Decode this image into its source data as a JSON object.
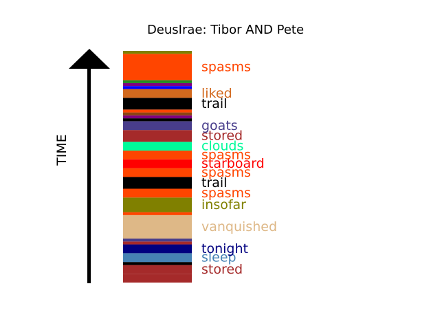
{
  "chart_data": {
    "type": "bar",
    "title": "DeusIrae: Tibor AND Pete",
    "ylabel": "TIME",
    "y_axis": "arrow pointing up, no ticks",
    "segments": [
      {
        "label": "",
        "color": "#a52a2a",
        "start": 0,
        "end": 1.5
      },
      {
        "label": "stored",
        "color": "#a52a2a",
        "start": 1.5,
        "end": 3.0
      },
      {
        "label": "",
        "color": "#000000",
        "start": 3.0,
        "end": 3.5
      },
      {
        "label": "sleep",
        "color": "#4682b4",
        "start": 3.5,
        "end": 5.0
      },
      {
        "label": "tonight",
        "color": "#000080",
        "start": 5.0,
        "end": 6.5
      },
      {
        "label": "",
        "color": "#a52a2a",
        "start": 6.5,
        "end": 7.0
      },
      {
        "label": "",
        "color": "#483d8b",
        "start": 7.0,
        "end": 7.5
      },
      {
        "label": "vanquished",
        "color": "#deb887",
        "start": 7.5,
        "end": 11.5
      },
      {
        "label": "",
        "color": "#ff4500",
        "start": 11.5,
        "end": 12.0
      },
      {
        "label": "insofar",
        "color": "#808000",
        "start": 12.0,
        "end": 14.5
      },
      {
        "label": "spasms",
        "color": "#ff4500",
        "start": 14.5,
        "end": 16.0
      },
      {
        "label": "trail",
        "color": "#000000",
        "start": 16.0,
        "end": 18.0
      },
      {
        "label": "spasms",
        "color": "#ff4500",
        "start": 18.0,
        "end": 19.5
      },
      {
        "label": "starboard",
        "color": "#ff0000",
        "start": 19.5,
        "end": 21.0
      },
      {
        "label": "spasms",
        "color": "#ff4500",
        "start": 21.0,
        "end": 22.5
      },
      {
        "label": "clouds",
        "color": "#00fa9a",
        "start": 22.5,
        "end": 24.0
      },
      {
        "label": "stored",
        "color": "#a52a2a",
        "start": 24.0,
        "end": 26.0
      },
      {
        "label": "goats",
        "color": "#483d8b",
        "start": 26.0,
        "end": 27.5
      },
      {
        "label": "",
        "color": "#000000",
        "start": 27.5,
        "end": 28.0
      },
      {
        "label": "",
        "color": "#800080",
        "start": 28.0,
        "end": 28.5
      },
      {
        "label": "",
        "color": "#8b4513",
        "start": 28.5,
        "end": 29.0
      },
      {
        "label": "",
        "color": "#ff4500",
        "start": 29.0,
        "end": 29.5
      },
      {
        "label": "trail",
        "color": "#000000",
        "start": 29.5,
        "end": 31.5
      },
      {
        "label": "liked",
        "color": "#d2691e",
        "start": 31.5,
        "end": 33.0
      },
      {
        "label": "",
        "color": "#0000ff",
        "start": 33.0,
        "end": 33.5
      },
      {
        "label": "",
        "color": "#800080",
        "start": 33.5,
        "end": 34.0
      },
      {
        "label": "",
        "color": "#228b22",
        "start": 34.0,
        "end": 34.5
      },
      {
        "label": "spasms",
        "color": "#ff4500",
        "start": 34.5,
        "end": 39.0
      },
      {
        "label": "",
        "color": "#808000",
        "start": 39.0,
        "end": 39.5
      }
    ],
    "ylim": [
      0,
      39.5
    ]
  }
}
